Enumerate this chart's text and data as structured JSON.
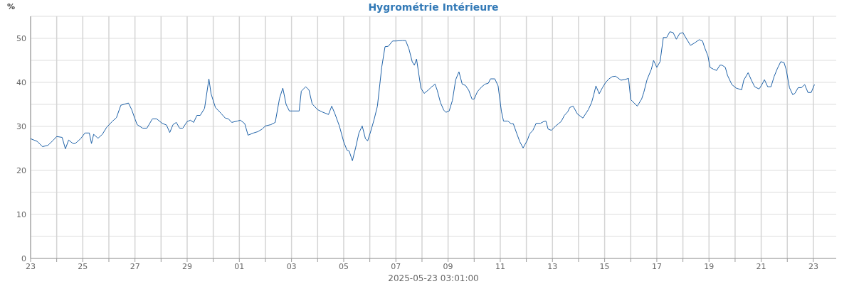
{
  "chart_data": {
    "type": "line",
    "title": "Hygrométrie Intérieure",
    "ylabel": "%",
    "xlabel": "2025-05-23 03:01:00",
    "xlim": [
      "2025-04-23T00:00",
      "2025-05-23T21:00"
    ],
    "xticks": [
      {
        "value": "2025-04-23",
        "label": "23"
      },
      {
        "value": "2025-04-24",
        "label": null
      },
      {
        "value": "2025-04-25",
        "label": "25"
      },
      {
        "value": "2025-04-26",
        "label": null
      },
      {
        "value": "2025-04-27",
        "label": "27"
      },
      {
        "value": "2025-04-28",
        "label": null
      },
      {
        "value": "2025-04-29",
        "label": "29"
      },
      {
        "value": "2025-04-30",
        "label": null
      },
      {
        "value": "2025-05-01",
        "label": "01"
      },
      {
        "value": "2025-05-02",
        "label": null
      },
      {
        "value": "2025-05-03",
        "label": "03"
      },
      {
        "value": "2025-05-04",
        "label": null
      },
      {
        "value": "2025-05-05",
        "label": "05"
      },
      {
        "value": "2025-05-06",
        "label": null
      },
      {
        "value": "2025-05-07",
        "label": "07"
      },
      {
        "value": "2025-05-08",
        "label": null
      },
      {
        "value": "2025-05-09",
        "label": "09"
      },
      {
        "value": "2025-05-10",
        "label": null
      },
      {
        "value": "2025-05-11",
        "label": "11"
      },
      {
        "value": "2025-05-12",
        "label": null
      },
      {
        "value": "2025-05-13",
        "label": "13"
      },
      {
        "value": "2025-05-14",
        "label": null
      },
      {
        "value": "2025-05-15",
        "label": "15"
      },
      {
        "value": "2025-05-16",
        "label": null
      },
      {
        "value": "2025-05-17",
        "label": "17"
      },
      {
        "value": "2025-05-18",
        "label": null
      },
      {
        "value": "2025-05-19",
        "label": "19"
      },
      {
        "value": "2025-05-20",
        "label": null
      },
      {
        "value": "2025-05-21",
        "label": "21"
      },
      {
        "value": "2025-05-22",
        "label": null
      },
      {
        "value": "2025-05-23",
        "label": "23"
      }
    ],
    "ylim": [
      0,
      55
    ],
    "yticks": [
      0,
      {
        "value": 5,
        "label": null
      },
      10,
      {
        "value": 15,
        "label": null
      },
      20,
      {
        "value": 25,
        "label": null
      },
      30,
      {
        "value": 35,
        "label": null
      },
      40,
      {
        "value": 45,
        "label": null
      },
      50,
      {
        "value": 55,
        "label": null
      }
    ],
    "grid": true,
    "marker": "none",
    "line_style": "solid",
    "x": [
      "2025-04-23T00:00",
      "2025-04-23T06:00",
      "2025-04-23T11:00",
      "2025-04-23T16:00",
      "2025-04-23T21:00",
      "2025-04-24T00:00",
      "2025-04-24T05:00",
      "2025-04-24T08:00",
      "2025-04-24T11:00",
      "2025-04-24T15:00",
      "2025-04-24T17:00",
      "2025-04-24T22:00",
      "2025-04-25T02:00",
      "2025-04-25T06:00",
      "2025-04-25T08:00",
      "2025-04-25T10:00",
      "2025-04-25T14:00",
      "2025-04-25T18:00",
      "2025-04-25T22:00",
      "2025-04-26T03:00",
      "2025-04-26T07:00",
      "2025-04-26T11:00",
      "2025-04-26T15:00",
      "2025-04-26T18:00",
      "2025-04-26T21:00",
      "2025-04-27T00:00",
      "2025-04-27T02:00",
      "2025-04-27T07:00",
      "2025-04-27T11:00",
      "2025-04-27T16:00",
      "2025-04-27T20:00",
      "2025-04-28T01:00",
      "2025-04-28T05:00",
      "2025-04-28T08:00",
      "2025-04-28T11:00",
      "2025-04-28T14:00",
      "2025-04-28T17:00",
      "2025-04-28T20:00",
      "2025-04-29T00:00",
      "2025-04-29T03:00",
      "2025-04-29T06:00",
      "2025-04-29T09:00",
      "2025-04-29T12:00",
      "2025-04-29T16:00",
      "2025-04-29T20:00",
      "2025-04-29T22:00",
      "2025-04-30T02:00",
      "2025-04-30T07:00",
      "2025-04-30T11:00",
      "2025-04-30T14:00",
      "2025-04-30T17:00",
      "2025-04-30T22:00",
      "2025-05-01T01:00",
      "2025-05-01T05:00",
      "2025-05-01T08:00",
      "2025-05-01T13:00",
      "2025-05-01T17:00",
      "2025-05-01T21:00",
      "2025-05-02T00:00",
      "2025-05-02T05:00",
      "2025-05-02T09:00",
      "2025-05-02T13:00",
      "2025-05-02T16:00",
      "2025-05-02T19:00",
      "2025-05-02T22:00",
      "2025-05-03T01:00",
      "2025-05-03T07:00",
      "2025-05-03T09:00",
      "2025-05-03T13:00",
      "2025-05-03T16:00",
      "2025-05-03T19:00",
      "2025-05-04T00:00",
      "2025-05-04T04:00",
      "2025-05-04T10:00",
      "2025-05-04T13:00",
      "2025-05-04T16:00",
      "2025-05-04T20:00",
      "2025-05-05T00:00",
      "2025-05-05T03:00",
      "2025-05-05T05:00",
      "2025-05-05T08:00",
      "2025-05-05T11:00",
      "2025-05-05T14:00",
      "2025-05-05T17:00",
      "2025-05-05T20:00",
      "2025-05-05T22:00",
      "2025-05-06T01:00",
      "2025-05-06T04:00",
      "2025-05-06T07:00",
      "2025-05-06T11:00",
      "2025-05-06T14:00",
      "2025-05-06T17:00",
      "2025-05-06T21:00",
      "2025-05-07T00:00",
      "2025-05-07T06:00",
      "2025-05-07T09:00",
      "2025-05-07T12:00",
      "2025-05-07T15:00",
      "2025-05-07T17:00",
      "2025-05-07T19:00",
      "2025-05-07T23:00",
      "2025-05-08T02:00",
      "2025-05-08T06:00",
      "2025-05-08T08:00",
      "2025-05-08T12:00",
      "2025-05-08T14:00",
      "2025-05-08T17:00",
      "2025-05-08T20:00",
      "2025-05-08T22:00",
      "2025-05-09T01:00",
      "2025-05-09T04:00",
      "2025-05-09T07:00",
      "2025-05-09T10:00",
      "2025-05-09T13:00",
      "2025-05-09T16:00",
      "2025-05-09T19:00",
      "2025-05-09T22:00",
      "2025-05-10T00:00",
      "2025-05-10T03:00",
      "2025-05-10T07:00",
      "2025-05-10T10:00",
      "2025-05-10T13:00",
      "2025-05-10T15:00",
      "2025-05-10T19:00",
      "2025-05-10T22:00",
      "2025-05-11T01:00",
      "2025-05-11T03:00",
      "2025-05-11T07:00",
      "2025-05-11T10:00",
      "2025-05-11T12:00",
      "2025-05-11T15:00",
      "2025-05-11T18:00",
      "2025-05-11T21:00",
      "2025-05-12T01:00",
      "2025-05-12T03:00",
      "2025-05-12T06:00",
      "2025-05-12T09:00",
      "2025-05-12T13:00",
      "2025-05-12T16:00",
      "2025-05-12T18:00",
      "2025-05-12T20:00",
      "2025-05-12T23:00",
      "2025-05-13T03:00",
      "2025-05-13T06:00",
      "2025-05-13T08:00",
      "2025-05-13T11:00",
      "2025-05-13T14:00",
      "2025-05-13T16:00",
      "2025-05-13T19:00",
      "2025-05-13T23:00",
      "2025-05-14T04:00",
      "2025-05-14T09:00",
      "2025-05-14T12:00",
      "2025-05-14T14:00",
      "2025-05-14T16:00",
      "2025-05-14T19:00",
      "2025-05-14T22:00",
      "2025-05-15T01:00",
      "2025-05-15T04:00",
      "2025-05-15T07:00",
      "2025-05-15T10:00",
      "2025-05-15T15:00",
      "2025-05-15T18:00",
      "2025-05-15T22:00",
      "2025-05-16T00:00",
      "2025-05-16T06:00",
      "2025-05-16T10:00",
      "2025-05-16T12:00",
      "2025-05-16T15:00",
      "2025-05-16T19:00",
      "2025-05-16T21:00",
      "2025-05-17T00:00",
      "2025-05-17T03:00",
      "2025-05-17T06:00",
      "2025-05-17T09:00",
      "2025-05-17T12:00",
      "2025-05-17T15:00",
      "2025-05-17T18:00",
      "2025-05-17T21:00",
      "2025-05-18T00:00",
      "2025-05-18T03:00",
      "2025-05-18T07:00",
      "2025-05-18T11:00",
      "2025-05-18T15:00",
      "2025-05-18T18:00",
      "2025-05-18T20:00",
      "2025-05-18T23:00",
      "2025-05-19T01:00",
      "2025-05-19T04:00",
      "2025-05-19T07:00",
      "2025-05-19T10:00",
      "2025-05-19T12:00",
      "2025-05-19T15:00",
      "2025-05-19T17:00",
      "2025-05-19T21:00",
      "2025-05-20T01:00",
      "2025-05-20T06:00",
      "2025-05-20T08:00",
      "2025-05-20T12:00",
      "2025-05-20T15:00",
      "2025-05-20T18:00",
      "2025-05-20T22:00",
      "2025-05-21T00:00",
      "2025-05-21T03:00",
      "2025-05-21T06:00",
      "2025-05-21T09:00",
      "2025-05-21T12:00",
      "2025-05-21T15:00",
      "2025-05-21T18:00",
      "2025-05-21T21:00",
      "2025-05-21T23:00",
      "2025-05-22T02:00",
      "2025-05-22T05:00",
      "2025-05-22T07:00",
      "2025-05-22T10:00",
      "2025-05-22T13:00",
      "2025-05-22T16:00",
      "2025-05-22T19:00",
      "2025-05-22T22:00",
      "2025-05-23T01:00"
    ],
    "series": [
      {
        "color": "#1f62a8",
        "values": [
          27.2,
          26.6,
          25.4,
          25.7,
          26.9,
          27.7,
          27.5,
          24.9,
          26.9,
          26.1,
          26.1,
          27.2,
          28.5,
          28.5,
          26.1,
          28.2,
          27.3,
          28.2,
          29.8,
          31.1,
          32.0,
          34.8,
          35.1,
          35.3,
          33.8,
          31.7,
          30.4,
          29.6,
          29.6,
          31.7,
          31.7,
          30.7,
          30.3,
          28.6,
          30.4,
          30.9,
          29.6,
          29.6,
          31.1,
          31.4,
          30.9,
          32.5,
          32.5,
          34.1,
          40.8,
          37.4,
          34.3,
          33.0,
          31.9,
          31.7,
          30.9,
          31.2,
          31.4,
          30.6,
          28.0,
          28.5,
          28.8,
          29.4,
          30.1,
          30.4,
          30.9,
          36.4,
          38.7,
          35.0,
          33.5,
          33.5,
          33.5,
          38.0,
          39.0,
          38.3,
          35.1,
          33.8,
          33.3,
          32.7,
          34.6,
          32.8,
          30.1,
          26.5,
          24.6,
          24.4,
          22.2,
          25.2,
          28.5,
          30.1,
          27.2,
          26.7,
          29.0,
          31.6,
          34.6,
          43.5,
          48.1,
          48.2,
          49.4,
          49.4,
          49.5,
          49.5,
          47.6,
          44.7,
          43.9,
          45.3,
          38.7,
          37.5,
          38.3,
          38.8,
          39.6,
          38.2,
          35.4,
          33.7,
          33.2,
          33.5,
          35.9,
          40.6,
          42.4,
          39.6,
          39.3,
          38.2,
          36.2,
          36.2,
          37.9,
          39.0,
          39.6,
          39.8,
          40.8,
          40.8,
          39.2,
          33.5,
          31.2,
          31.2,
          30.6,
          30.6,
          28.5,
          26.5,
          25.1,
          26.9,
          28.3,
          29.1,
          30.7,
          30.7,
          31.1,
          31.2,
          29.4,
          29.1,
          30.1,
          30.7,
          31.1,
          32.5,
          33.3,
          34.3,
          34.6,
          32.8,
          31.9,
          33.8,
          35.4,
          37.2,
          39.2,
          37.4,
          38.8,
          40.0,
          40.8,
          41.3,
          41.4,
          40.5,
          40.6,
          40.9,
          36.1,
          34.6,
          36.2,
          37.7,
          40.6,
          43.0,
          45.0,
          43.4,
          44.7,
          50.2,
          50.2,
          51.5,
          51.3,
          49.8,
          51.1,
          51.3,
          50.0,
          48.4,
          49.0,
          49.7,
          49.4,
          47.9,
          46.0,
          43.4,
          43.0,
          42.7,
          43.9,
          43.9,
          43.4,
          41.6,
          39.5,
          38.7,
          38.3,
          40.5,
          42.2,
          40.5,
          39.0,
          38.5,
          39.2,
          40.6,
          39.0,
          39.0,
          41.4,
          43.2,
          44.7,
          44.5,
          42.9,
          38.8,
          37.2,
          37.5,
          38.8,
          38.8,
          39.5,
          37.7,
          37.7,
          39.5
        ]
      }
    ]
  }
}
